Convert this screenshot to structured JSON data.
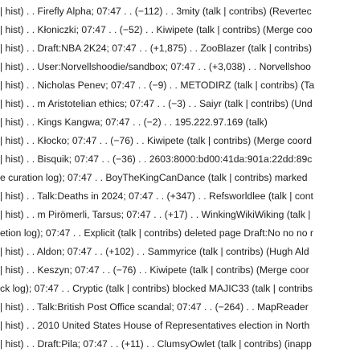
{
  "log_lines": [
    "| hist) . . Firefly Alpha; 07:47 . . (−112) . . 3mity (talk | contribs) (Revertec",
    "| hist) . . Kłoniczki; 07:47 . . (−52) . . Kiwipete (talk | contribs) (Merge coo",
    "| hist) . . Draft:NBA 2K24; 07:47 . . (+1,875) . . ZooBlazer (talk | contribs)",
    "| hist) . . User:Norvellshoodie/sandbox; 07:47 . . (+3,038) . . Norvellshoo",
    "| hist) . . Nicholas Penev; 07:47 . . (−9) . . METODIRZ (talk | contribs) (Ta",
    "| hist) . . m Aristotelian ethics; 07:47 . . (−3) . . Saiyr (talk | contribs) (Und",
    "| hist) . . Kings Kangwa; 07:47 . . (−2) . . 195.222.97.169 (talk)",
    "| hist) . . Kłocko; 07:47 . . (−76) . . Kiwipete (talk | contribs) (Merge coord",
    "| hist) . . Bisquik; 07:47 . . (−36) . . 2603:8000:bd00:41da:901a:22dd:89c",
    "e curation log); 07:47 . . BoyTheKingCanDance (talk | contribs) marked",
    "| hist) . . Talk:Deaths in 2024; 07:47 . . (+347) . . Refsworldlee (talk | cont",
    "| hist) . . m Pirömerli, Tarsus; 07:47 . . (+17) . . WinkingWikiWiking (talk |",
    "etion log); 07:47 . . Explicit (talk | contribs) deleted page Draft:No no no r",
    "| hist) . . Aldon; 07:47 . . (+102) . . Sammyrice (talk | contribs) (Hugh Ald",
    "| hist) . . Keszyn; 07:47 . . (−76) . . Kiwipete (talk | contribs) (Merge coor",
    "ck log); 07:47 . . Cryptic (talk | contribs) blocked MAJIC33 (talk | contribs",
    "| hist) . . Talk:British Post Office scandal; 07:47 . . (−264) . . MapReader",
    "| hist) . . 2010 United States House of Representatives election in North",
    "| hist) . . Draft:Pila; 07:47 . . (+11) . . ClumsyOwlet (talk | contribs) (inapp"
  ]
}
